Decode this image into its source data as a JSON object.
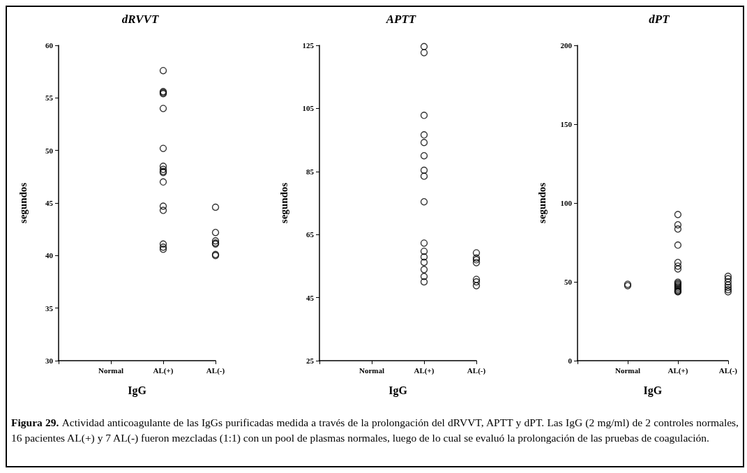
{
  "chart_data": [
    {
      "type": "scatter",
      "title": "dRVVT",
      "xlabel": "IgG",
      "ylabel": "segundos",
      "categories": [
        null,
        "Normal",
        "AL(+)",
        "AL(-)"
      ],
      "ylim": [
        30,
        60
      ],
      "yticks": [
        30,
        35,
        40,
        45,
        50,
        55,
        60
      ],
      "grid": false,
      "marker": "circle",
      "series": [
        {
          "color": "#000000",
          "x": [
            "AL(+)",
            "AL(+)",
            "AL(+)",
            "AL(+)",
            "AL(+)",
            "AL(+)",
            "AL(+)",
            "AL(+)",
            "AL(+)",
            "AL(+)",
            "AL(+)",
            "AL(+)",
            "AL(+)",
            "AL(+)",
            "AL(+)",
            "AL(+)",
            "AL(-)",
            "AL(-)",
            "AL(-)",
            "AL(-)",
            "AL(-)",
            "AL(-)",
            "AL(-)"
          ],
          "values": [
            57.6,
            55.6,
            55.5,
            55.4,
            54.0,
            50.2,
            48.5,
            48.2,
            48.0,
            47.9,
            47.0,
            44.7,
            44.3,
            41.1,
            40.8,
            40.6,
            44.6,
            42.2,
            41.4,
            41.2,
            41.1,
            40.1,
            40.0
          ]
        }
      ],
      "annotations": [
        "Figura 29.",
        "Actividad anticoagulante de las IgGs purificadas medida a través de la prolongación del dRVVT, APTT y dPT. Las IgG (2 mg/ml) de 2 controles normales, 16 pacientes AL(+) y 7 AL(-) fueron mezcladas (1:1) con un pool de plasmas normales, luego de lo cual se evaluó la prolongación de las pruebas de coagulación."
      ]
    },
    {
      "type": "scatter",
      "title": "APTT",
      "xlabel": "IgG",
      "ylabel": "segundos",
      "categories": [
        null,
        "Normal",
        "AL(+)",
        "AL(-)"
      ],
      "ylim": [
        25,
        125
      ],
      "yticks": [
        25,
        45,
        65,
        85,
        105,
        125
      ],
      "grid": false,
      "marker": "circle",
      "series": [
        {
          "color": "#000000",
          "x": [
            "AL(+)",
            "AL(+)",
            "AL(+)",
            "AL(+)",
            "AL(+)",
            "AL(+)",
            "AL(+)",
            "AL(+)",
            "AL(+)",
            "AL(+)",
            "AL(+)",
            "AL(+)",
            "AL(+)",
            "AL(+)",
            "AL(+)",
            "AL(+)",
            "AL(-)",
            "AL(-)",
            "AL(-)",
            "AL(-)",
            "AL(-)",
            "AL(-)",
            "AL(-)"
          ],
          "values": [
            124.6,
            122.7,
            102.8,
            96.6,
            94.2,
            90.0,
            85.4,
            83.5,
            75.4,
            62.3,
            59.7,
            57.9,
            56.2,
            53.9,
            51.7,
            50.0,
            59.2,
            57.6,
            57.0,
            56.1,
            50.8,
            50.0,
            48.8
          ]
        }
      ]
    },
    {
      "type": "scatter",
      "title": "dPT",
      "xlabel": "IgG",
      "ylabel": "segundos",
      "categories": [
        null,
        "Normal",
        "AL(+)",
        "AL(-)"
      ],
      "ylim": [
        0,
        200
      ],
      "yticks": [
        0,
        50,
        100,
        150,
        200
      ],
      "grid": false,
      "marker": "circle",
      "series": [
        {
          "color": "#000000",
          "x": [
            "Normal",
            "Normal",
            "AL(+)",
            "AL(+)",
            "AL(+)",
            "AL(+)",
            "AL(+)",
            "AL(+)",
            "AL(+)",
            "AL(+)",
            "AL(+)",
            "AL(+)",
            "AL(+)",
            "AL(+)",
            "AL(+)",
            "AL(+)",
            "AL(+)",
            "AL(+)",
            "AL(-)",
            "AL(-)",
            "AL(-)",
            "AL(-)",
            "AL(-)",
            "AL(-)",
            "AL(-)"
          ],
          "values": [
            47.6,
            48.5,
            92.7,
            86.2,
            83.5,
            73.3,
            62.3,
            60.0,
            58.2,
            49.8,
            49.0,
            48.2,
            47.3,
            46.5,
            45.5,
            44.6,
            44.0,
            43.7,
            53.5,
            52.0,
            50.0,
            48.0,
            46.5,
            45.0,
            43.7
          ]
        }
      ]
    }
  ]
}
